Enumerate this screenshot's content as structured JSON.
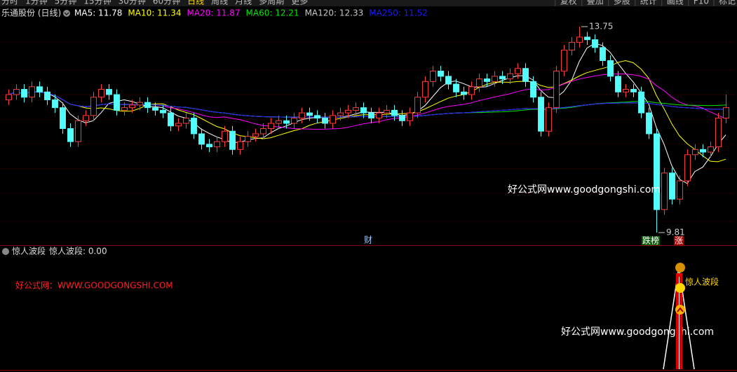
{
  "toolbar": {
    "left": [
      "分时",
      "1分钟",
      "5分钟",
      "15分钟",
      "30分钟",
      "60分钟",
      "日线",
      "周线",
      "月线",
      "多周期",
      "更多"
    ],
    "right": [
      "复权",
      "叠加",
      "多股",
      "统计",
      "画线",
      "F10",
      "标记"
    ]
  },
  "chart_data": [
    {
      "type": "candlestick",
      "title": "乐通股份 (日线)",
      "legend": [
        {
          "label": "MA5: 11.78",
          "color": "#ffffff"
        },
        {
          "label": "MA10: 11.34",
          "color": "#ffff00"
        },
        {
          "label": "MA20: 11.87",
          "color": "#ff00ff"
        },
        {
          "label": "MA60: 12.21",
          "color": "#00e600"
        },
        {
          "label": "MA120: 12.33",
          "color": "#c8c8c8"
        },
        {
          "label": "MA250: 11.52",
          "color": "#1a1aff"
        }
      ],
      "up_color": "#ff3c3c",
      "down_color": "#54fcfc",
      "open": [
        12.35,
        12.45,
        12.55,
        12.4,
        12.6,
        12.5,
        12.35,
        12.2,
        11.8,
        11.55,
        11.95,
        12.05,
        12.4,
        12.55,
        12.45,
        12.15,
        12.2,
        12.25,
        12.3,
        12.2,
        12.15,
        12.1,
        11.85,
        11.9,
        12.0,
        11.7,
        11.5,
        11.45,
        11.55,
        11.75,
        11.4,
        11.55,
        11.65,
        11.7,
        11.8,
        11.9,
        11.95,
        11.9,
        12.0,
        12.1,
        12.05,
        12.0,
        11.9,
        12.05,
        12.1,
        12.15,
        12.2,
        12.1,
        12.0,
        12.1,
        12.15,
        12.05,
        11.95,
        12.1,
        12.4,
        12.7,
        12.9,
        12.8,
        12.65,
        12.5,
        12.45,
        12.6,
        12.75,
        12.7,
        12.8,
        12.75,
        12.85,
        12.95,
        12.7,
        12.4,
        11.75,
        12.2,
        12.9,
        13.3,
        13.45,
        13.55,
        13.5,
        13.35,
        13.1,
        12.8,
        12.5,
        12.55,
        12.5,
        12.1,
        11.7,
        10.25,
        10.95,
        10.45,
        10.8,
        11.3,
        11.4,
        11.35,
        11.45,
        12.0
      ],
      "close": [
        12.45,
        12.55,
        12.4,
        12.6,
        12.5,
        12.35,
        12.2,
        11.8,
        11.55,
        11.95,
        12.05,
        12.4,
        12.55,
        12.45,
        12.15,
        12.2,
        12.25,
        12.3,
        12.2,
        12.15,
        12.1,
        11.85,
        11.9,
        12.0,
        11.7,
        11.5,
        11.45,
        11.55,
        11.75,
        11.4,
        11.55,
        11.65,
        11.7,
        11.8,
        11.9,
        11.95,
        11.9,
        12.0,
        12.1,
        12.05,
        12.0,
        11.9,
        12.05,
        12.1,
        12.15,
        12.2,
        12.1,
        12.0,
        12.1,
        12.15,
        12.05,
        11.95,
        12.1,
        12.4,
        12.7,
        12.9,
        12.8,
        12.65,
        12.5,
        12.45,
        12.6,
        12.75,
        12.7,
        12.8,
        12.75,
        12.85,
        12.95,
        12.7,
        12.4,
        11.75,
        12.2,
        12.9,
        13.3,
        13.45,
        13.55,
        13.5,
        13.35,
        13.1,
        12.8,
        12.5,
        12.55,
        12.5,
        12.1,
        11.7,
        10.25,
        10.95,
        10.45,
        10.8,
        11.3,
        11.4,
        11.35,
        11.45,
        12.0,
        12.2
      ],
      "high": [
        12.55,
        12.65,
        12.65,
        12.7,
        12.7,
        12.6,
        12.45,
        12.3,
        11.9,
        12.05,
        12.15,
        12.5,
        12.65,
        12.65,
        12.55,
        12.3,
        12.35,
        12.4,
        12.4,
        12.3,
        12.25,
        12.2,
        12.0,
        12.1,
        12.1,
        11.8,
        11.6,
        11.65,
        11.85,
        11.85,
        11.65,
        11.75,
        11.8,
        11.9,
        12.0,
        12.05,
        12.05,
        12.1,
        12.2,
        12.2,
        12.15,
        12.1,
        12.15,
        12.2,
        12.25,
        12.3,
        12.3,
        12.2,
        12.2,
        12.25,
        12.25,
        12.15,
        12.2,
        12.5,
        12.8,
        13.0,
        13.0,
        12.9,
        12.75,
        12.6,
        12.7,
        12.85,
        12.85,
        12.9,
        12.9,
        12.95,
        13.05,
        13.05,
        12.8,
        12.5,
        12.3,
        13.0,
        13.4,
        13.55,
        13.75,
        13.65,
        13.6,
        13.45,
        13.2,
        12.9,
        12.65,
        12.65,
        12.6,
        12.2,
        11.8,
        11.05,
        11.05,
        10.9,
        11.4,
        11.5,
        11.5,
        11.55,
        12.1,
        12.45
      ],
      "low": [
        12.25,
        12.35,
        12.3,
        12.3,
        12.4,
        12.25,
        12.1,
        11.7,
        11.45,
        11.45,
        11.85,
        11.95,
        12.3,
        12.35,
        12.05,
        12.05,
        12.1,
        12.15,
        12.1,
        12.05,
        12.0,
        11.75,
        11.75,
        11.8,
        11.6,
        11.4,
        11.35,
        11.35,
        11.45,
        11.3,
        11.3,
        11.45,
        11.55,
        11.6,
        11.7,
        11.8,
        11.8,
        11.8,
        11.9,
        11.95,
        11.9,
        11.8,
        11.8,
        11.95,
        12.0,
        12.05,
        12.0,
        11.9,
        11.9,
        12.0,
        11.95,
        11.85,
        11.85,
        12.0,
        12.3,
        12.6,
        12.7,
        12.55,
        12.4,
        12.35,
        12.35,
        12.5,
        12.6,
        12.6,
        12.65,
        12.65,
        12.75,
        12.6,
        12.3,
        11.65,
        11.65,
        12.1,
        12.8,
        13.2,
        13.35,
        13.4,
        13.25,
        13.0,
        12.7,
        12.4,
        12.4,
        12.4,
        12.0,
        11.6,
        9.81,
        10.15,
        10.35,
        10.35,
        10.7,
        11.2,
        11.25,
        11.25,
        11.35,
        11.9
      ],
      "markers": [
        "财",
        "跌榜",
        "涨"
      ]
    },
    {
      "type": "indicator",
      "title": "惊人波段",
      "legend": "惊人波段: 0.00",
      "signal_label": "惊人波段"
    }
  ],
  "watermarks": [
    "好公式网www.goodgongshi.com",
    "好公式网：WWW.GOODGONGSHI.COM",
    "好公式网www.goodgongshi.com"
  ]
}
